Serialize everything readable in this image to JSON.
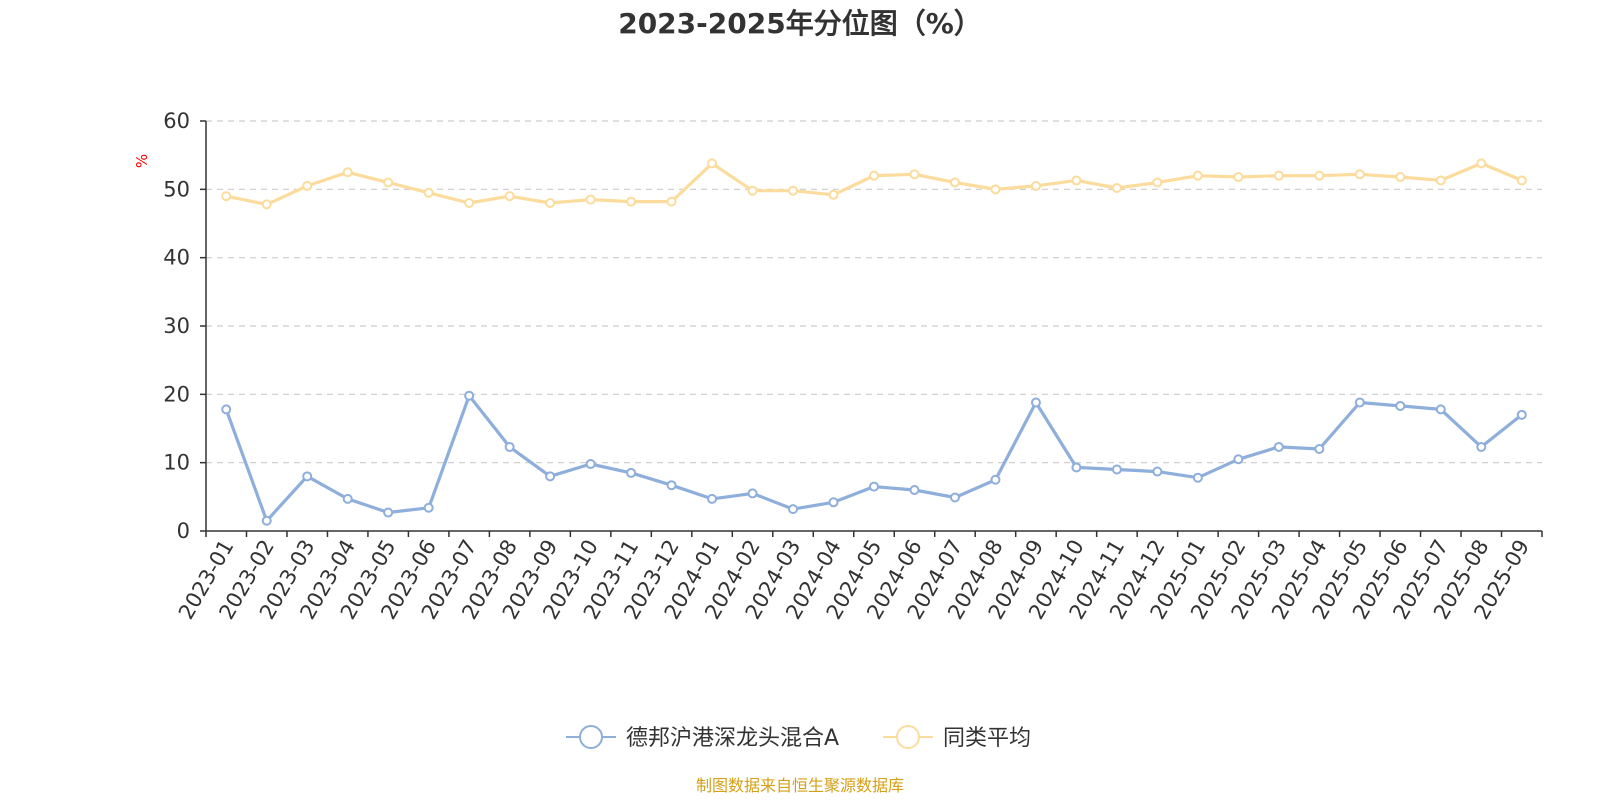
{
  "chart_data": {
    "type": "line",
    "title": "2023-2025年分位图（%）",
    "ylabel": "%",
    "xlabel": "",
    "ylim": [
      0,
      60
    ],
    "yticks": [
      0,
      10,
      20,
      30,
      40,
      50,
      60
    ],
    "grid": true,
    "legend_position": "bottom",
    "categories": [
      "2023-01",
      "2023-02",
      "2023-03",
      "2023-04",
      "2023-05",
      "2023-06",
      "2023-07",
      "2023-08",
      "2023-09",
      "2023-10",
      "2023-11",
      "2023-12",
      "2024-01",
      "2024-02",
      "2024-03",
      "2024-04",
      "2024-05",
      "2024-06",
      "2024-07",
      "2024-08",
      "2024-09",
      "2024-10",
      "2024-11",
      "2024-12",
      "2025-01",
      "2025-02",
      "2025-03",
      "2025-04",
      "2025-05",
      "2025-06",
      "2025-07",
      "2025-08",
      "2025-09"
    ],
    "series": [
      {
        "name": "德邦沪港深龙头混合A",
        "color": "#8eaedb",
        "values": [
          17.8,
          1.5,
          8.0,
          4.7,
          2.7,
          3.4,
          19.8,
          12.3,
          8.0,
          9.8,
          8.5,
          6.7,
          4.7,
          5.5,
          3.2,
          4.2,
          6.5,
          6.0,
          4.9,
          7.5,
          18.8,
          9.3,
          9.0,
          8.7,
          7.8,
          10.5,
          12.3,
          12.0,
          18.8,
          18.3,
          17.8,
          12.3,
          17.0
        ]
      },
      {
        "name": "同类平均",
        "color": "#fcdc9c",
        "values": [
          49.0,
          47.8,
          50.5,
          52.5,
          51.0,
          49.5,
          48.0,
          49.0,
          48.0,
          48.5,
          48.2,
          48.2,
          53.8,
          49.8,
          49.8,
          49.2,
          52.0,
          52.2,
          51.0,
          50.0,
          50.5,
          51.3,
          50.2,
          51.0,
          52.0,
          51.8,
          52.0,
          52.0,
          52.2,
          51.8,
          51.3,
          53.8,
          51.3
        ]
      }
    ],
    "source": "制图数据来自恒生聚源数据库",
    "colors": {
      "axis": "#333333",
      "grid": "#cccccc",
      "unit": "#ff0000",
      "source": "#d4a017"
    }
  }
}
